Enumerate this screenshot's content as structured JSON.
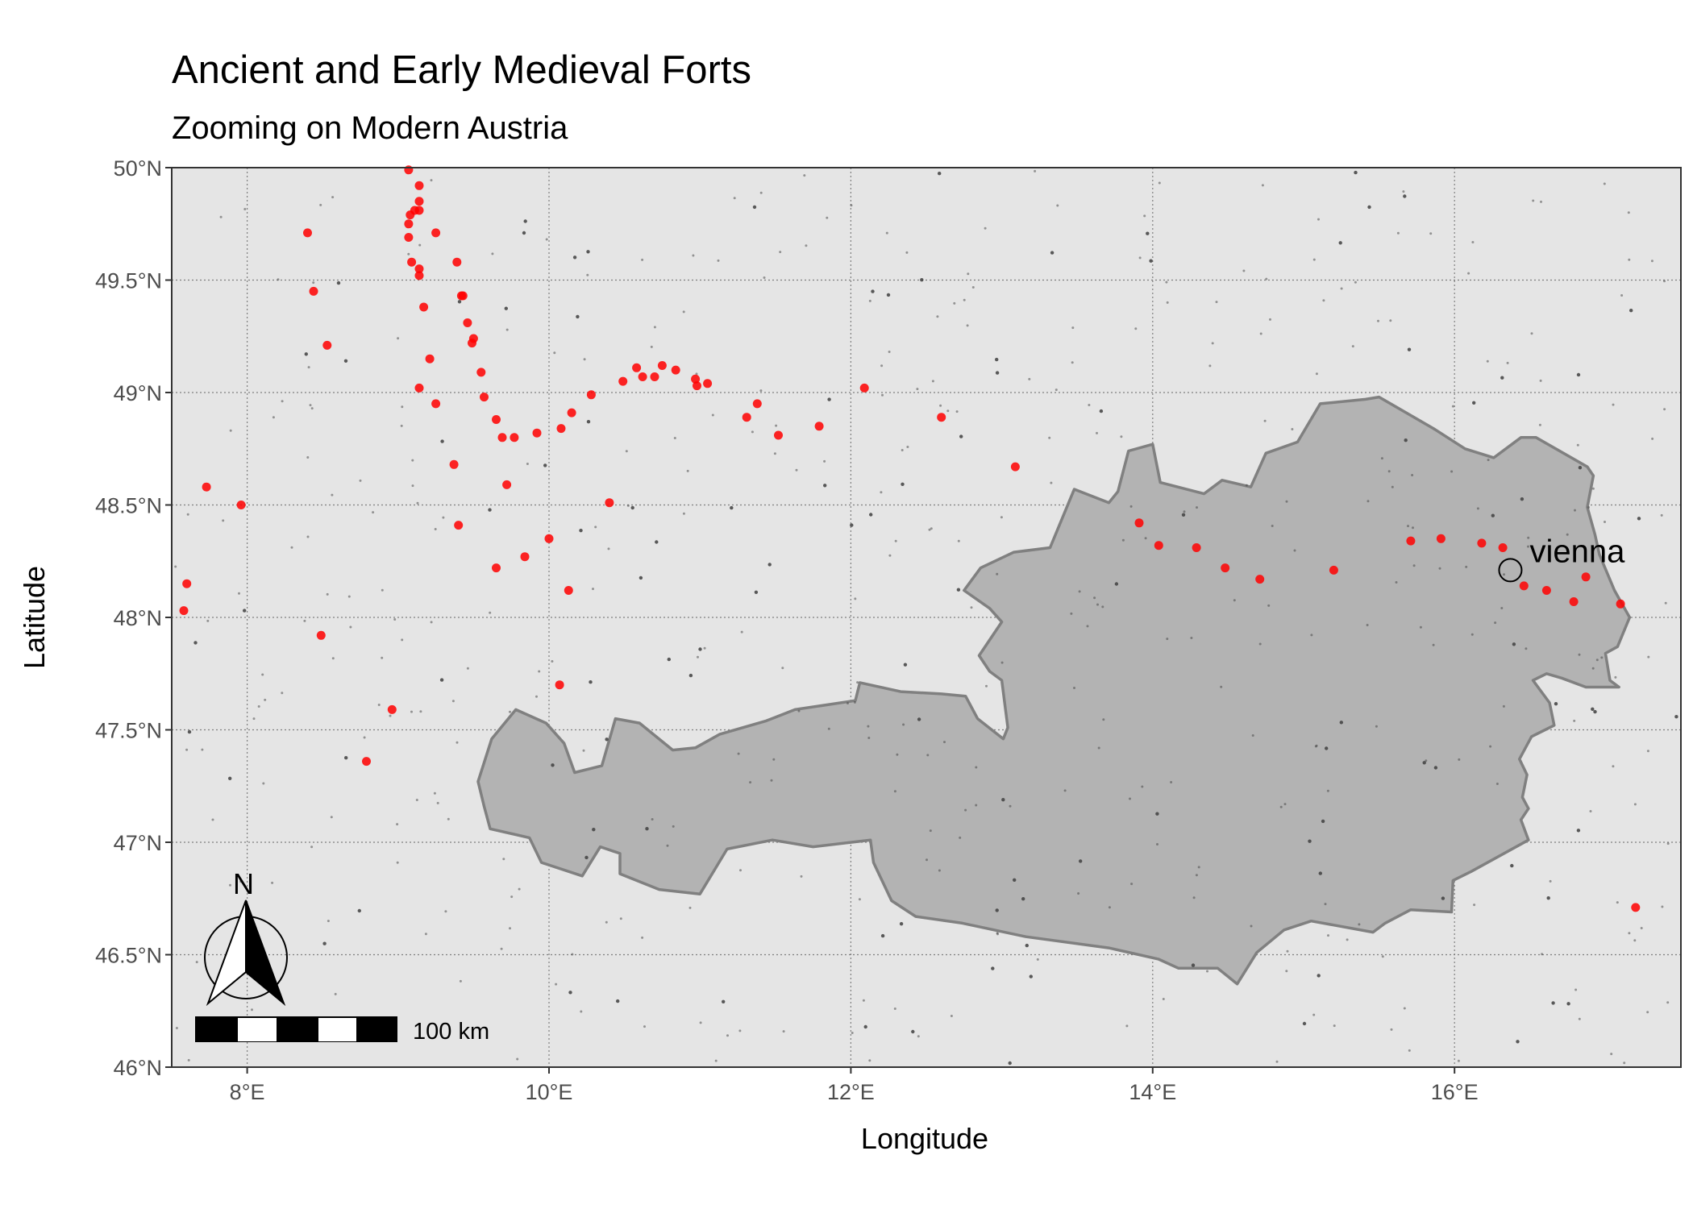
{
  "chart_data": {
    "type": "scatter",
    "title": "Ancient and Early Medieval Forts",
    "subtitle": "Zooming on Modern Austria",
    "xlabel": "Longitude",
    "ylabel": "Latitude",
    "xlim": [
      7.5,
      17.5
    ],
    "ylim": [
      46.0,
      50.0
    ],
    "x_ticks": [
      8,
      10,
      12,
      14,
      16
    ],
    "x_tick_labels": [
      "8°E",
      "10°E",
      "12°E",
      "14°E",
      "16°E"
    ],
    "y_ticks": [
      46.0,
      46.5,
      47.0,
      47.5,
      48.0,
      48.5,
      49.0,
      49.5,
      50.0
    ],
    "y_tick_labels": [
      "46°N",
      "46.5°N",
      "47°N",
      "47.5°N",
      "48°N",
      "48.5°N",
      "49°N",
      "49.5°N",
      "50°N"
    ],
    "grid": true,
    "colors": {
      "panel": "#e5e5e5",
      "grid": "#7f7f7f",
      "austria_fill": "#b3b3b3",
      "austria_border": "#808080",
      "forts": "#ff0000",
      "settlements": "#404040"
    },
    "austria_outline": [
      [
        9.53,
        47.27
      ],
      [
        9.62,
        47.46
      ],
      [
        9.78,
        47.59
      ],
      [
        9.98,
        47.53
      ],
      [
        10.1,
        47.44
      ],
      [
        10.17,
        47.31
      ],
      [
        10.35,
        47.34
      ],
      [
        10.44,
        47.55
      ],
      [
        10.6,
        47.53
      ],
      [
        10.82,
        47.41
      ],
      [
        10.97,
        47.42
      ],
      [
        11.13,
        47.48
      ],
      [
        11.44,
        47.54
      ],
      [
        11.63,
        47.59
      ],
      [
        12.03,
        47.63
      ],
      [
        12.06,
        47.71
      ],
      [
        12.33,
        47.67
      ],
      [
        12.6,
        47.66
      ],
      [
        12.76,
        47.65
      ],
      [
        12.84,
        47.55
      ],
      [
        13.01,
        47.46
      ],
      [
        13.04,
        47.51
      ],
      [
        13.0,
        47.72
      ],
      [
        12.92,
        47.76
      ],
      [
        12.85,
        47.83
      ],
      [
        13.0,
        47.98
      ],
      [
        12.92,
        48.04
      ],
      [
        12.75,
        48.12
      ],
      [
        12.86,
        48.22
      ],
      [
        13.08,
        48.29
      ],
      [
        13.32,
        48.31
      ],
      [
        13.48,
        48.57
      ],
      [
        13.71,
        48.51
      ],
      [
        13.77,
        48.56
      ],
      [
        13.84,
        48.74
      ],
      [
        14.0,
        48.77
      ],
      [
        14.05,
        48.6
      ],
      [
        14.34,
        48.55
      ],
      [
        14.46,
        48.61
      ],
      [
        14.65,
        48.58
      ],
      [
        14.75,
        48.73
      ],
      [
        14.96,
        48.78
      ],
      [
        15.11,
        48.95
      ],
      [
        15.41,
        48.97
      ],
      [
        15.5,
        48.98
      ],
      [
        15.86,
        48.84
      ],
      [
        16.07,
        48.75
      ],
      [
        16.26,
        48.71
      ],
      [
        16.44,
        48.8
      ],
      [
        16.54,
        48.8
      ],
      [
        16.88,
        48.67
      ],
      [
        16.92,
        48.63
      ],
      [
        16.88,
        48.49
      ],
      [
        16.93,
        48.37
      ],
      [
        16.96,
        48.28
      ],
      [
        17.06,
        48.12
      ],
      [
        17.16,
        48.0
      ],
      [
        17.08,
        47.87
      ],
      [
        17.0,
        47.84
      ],
      [
        17.03,
        47.72
      ],
      [
        17.09,
        47.69
      ],
      [
        16.87,
        47.69
      ],
      [
        16.71,
        47.73
      ],
      [
        16.61,
        47.75
      ],
      [
        16.52,
        47.72
      ],
      [
        16.63,
        47.62
      ],
      [
        16.66,
        47.52
      ],
      [
        16.51,
        47.47
      ],
      [
        16.43,
        47.37
      ],
      [
        16.48,
        47.3
      ],
      [
        16.45,
        47.2
      ],
      [
        16.49,
        47.15
      ],
      [
        16.44,
        47.1
      ],
      [
        16.49,
        47.01
      ],
      [
        16.11,
        46.87
      ],
      [
        15.99,
        46.83
      ],
      [
        15.98,
        46.69
      ],
      [
        15.71,
        46.7
      ],
      [
        15.54,
        46.64
      ],
      [
        15.46,
        46.6
      ],
      [
        15.05,
        46.65
      ],
      [
        14.87,
        46.61
      ],
      [
        14.69,
        46.51
      ],
      [
        14.56,
        46.37
      ],
      [
        14.43,
        46.44
      ],
      [
        14.17,
        46.44
      ],
      [
        14.04,
        46.48
      ],
      [
        13.71,
        46.53
      ],
      [
        13.16,
        46.58
      ],
      [
        12.74,
        46.64
      ],
      [
        12.43,
        46.67
      ],
      [
        12.27,
        46.74
      ],
      [
        12.15,
        46.91
      ],
      [
        12.13,
        47.01
      ],
      [
        11.75,
        46.98
      ],
      [
        11.48,
        47.01
      ],
      [
        11.18,
        46.97
      ],
      [
        11.0,
        46.77
      ],
      [
        10.73,
        46.79
      ],
      [
        10.47,
        46.86
      ],
      [
        10.47,
        46.95
      ],
      [
        10.34,
        46.98
      ],
      [
        10.22,
        46.85
      ],
      [
        9.95,
        46.91
      ],
      [
        9.87,
        47.02
      ],
      [
        9.61,
        47.06
      ],
      [
        9.57,
        47.16
      ],
      [
        9.53,
        47.27
      ]
    ],
    "series": [
      {
        "name": "forts",
        "points": [
          [
            9.07,
            49.99
          ],
          [
            9.14,
            49.92
          ],
          [
            9.14,
            49.85
          ],
          [
            9.11,
            49.81
          ],
          [
            9.14,
            49.81
          ],
          [
            9.08,
            49.79
          ],
          [
            9.07,
            49.75
          ],
          [
            9.07,
            49.69
          ],
          [
            8.4,
            49.71
          ],
          [
            9.25,
            49.71
          ],
          [
            9.09,
            49.58
          ],
          [
            9.39,
            49.58
          ],
          [
            9.14,
            49.55
          ],
          [
            9.14,
            49.52
          ],
          [
            8.44,
            49.45
          ],
          [
            9.43,
            49.43
          ],
          [
            9.42,
            49.43
          ],
          [
            9.17,
            49.38
          ],
          [
            9.46,
            49.31
          ],
          [
            9.5,
            49.24
          ],
          [
            9.49,
            49.22
          ],
          [
            8.53,
            49.21
          ],
          [
            9.21,
            49.15
          ],
          [
            9.55,
            49.09
          ],
          [
            9.14,
            49.02
          ],
          [
            9.57,
            48.98
          ],
          [
            9.25,
            48.95
          ],
          [
            9.65,
            48.88
          ],
          [
            9.69,
            48.8
          ],
          [
            9.77,
            48.8
          ],
          [
            9.92,
            48.82
          ],
          [
            9.37,
            48.68
          ],
          [
            9.72,
            48.59
          ],
          [
            7.73,
            48.58
          ],
          [
            7.96,
            48.5
          ],
          [
            9.4,
            48.41
          ],
          [
            10.0,
            48.35
          ],
          [
            9.84,
            48.27
          ],
          [
            9.65,
            48.22
          ],
          [
            7.6,
            48.15
          ],
          [
            7.58,
            48.03
          ],
          [
            10.13,
            48.12
          ],
          [
            8.49,
            47.92
          ],
          [
            10.07,
            47.7
          ],
          [
            8.96,
            47.59
          ],
          [
            8.79,
            47.36
          ],
          [
            10.08,
            48.84
          ],
          [
            10.15,
            48.91
          ],
          [
            10.28,
            48.99
          ],
          [
            10.49,
            49.05
          ],
          [
            10.58,
            49.11
          ],
          [
            10.62,
            49.07
          ],
          [
            10.7,
            49.07
          ],
          [
            10.75,
            49.12
          ],
          [
            10.84,
            49.1
          ],
          [
            10.97,
            49.06
          ],
          [
            10.98,
            49.03
          ],
          [
            11.05,
            49.04
          ],
          [
            11.31,
            48.89
          ],
          [
            11.38,
            48.95
          ],
          [
            11.52,
            48.81
          ],
          [
            11.79,
            48.85
          ],
          [
            12.09,
            49.02
          ],
          [
            12.6,
            48.89
          ],
          [
            13.09,
            48.67
          ],
          [
            10.4,
            48.51
          ],
          [
            13.91,
            48.42
          ],
          [
            14.04,
            48.32
          ],
          [
            14.29,
            48.31
          ],
          [
            14.48,
            48.22
          ],
          [
            14.71,
            48.17
          ],
          [
            15.2,
            48.21
          ],
          [
            15.71,
            48.34
          ],
          [
            15.91,
            48.35
          ],
          [
            16.18,
            48.33
          ],
          [
            16.32,
            48.31
          ],
          [
            16.46,
            48.14
          ],
          [
            16.61,
            48.12
          ],
          [
            16.79,
            48.07
          ],
          [
            16.87,
            48.18
          ],
          [
            17.1,
            48.06
          ],
          [
            17.2,
            46.71
          ]
        ]
      }
    ],
    "annotations": [
      {
        "label": "vienna",
        "lon": 16.37,
        "lat": 48.21
      }
    ],
    "north_arrow_label": "N",
    "scale_bar_label": "100 km"
  }
}
